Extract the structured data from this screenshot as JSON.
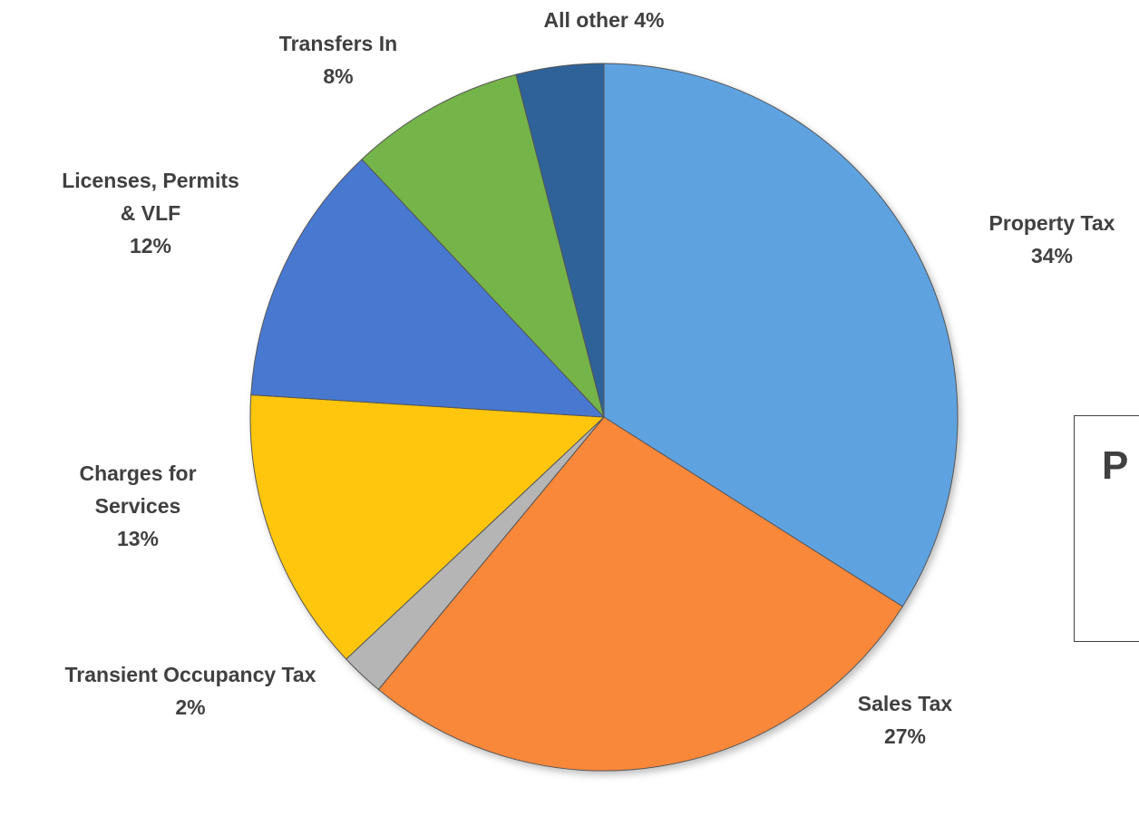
{
  "chart_data": {
    "type": "pie",
    "slices": [
      {
        "label_lines": [
          "Property Tax",
          "34%"
        ],
        "value": 34,
        "color": "#5fa2e0"
      },
      {
        "label_lines": [
          "Sales Tax",
          "27%"
        ],
        "value": 27,
        "color": "#f9883a"
      },
      {
        "label_lines": [
          "Transient Occupancy Tax",
          "2%"
        ],
        "value": 2,
        "color": "#b5b5b5"
      },
      {
        "label_lines": [
          "Charges for",
          "Services",
          "13%"
        ],
        "value": 13,
        "color": "#ffc60a"
      },
      {
        "label_lines": [
          "Licenses, Permits",
          "& VLF",
          "12%"
        ],
        "value": 12,
        "color": "#4a78d0"
      },
      {
        "label_lines": [
          "Transfers In",
          "8%"
        ],
        "value": 8,
        "color": "#74b44a"
      },
      {
        "label_lines": [
          "All other 4%"
        ],
        "value": 4,
        "color": "#2d6298"
      }
    ]
  },
  "side_box": {
    "text": "P"
  }
}
